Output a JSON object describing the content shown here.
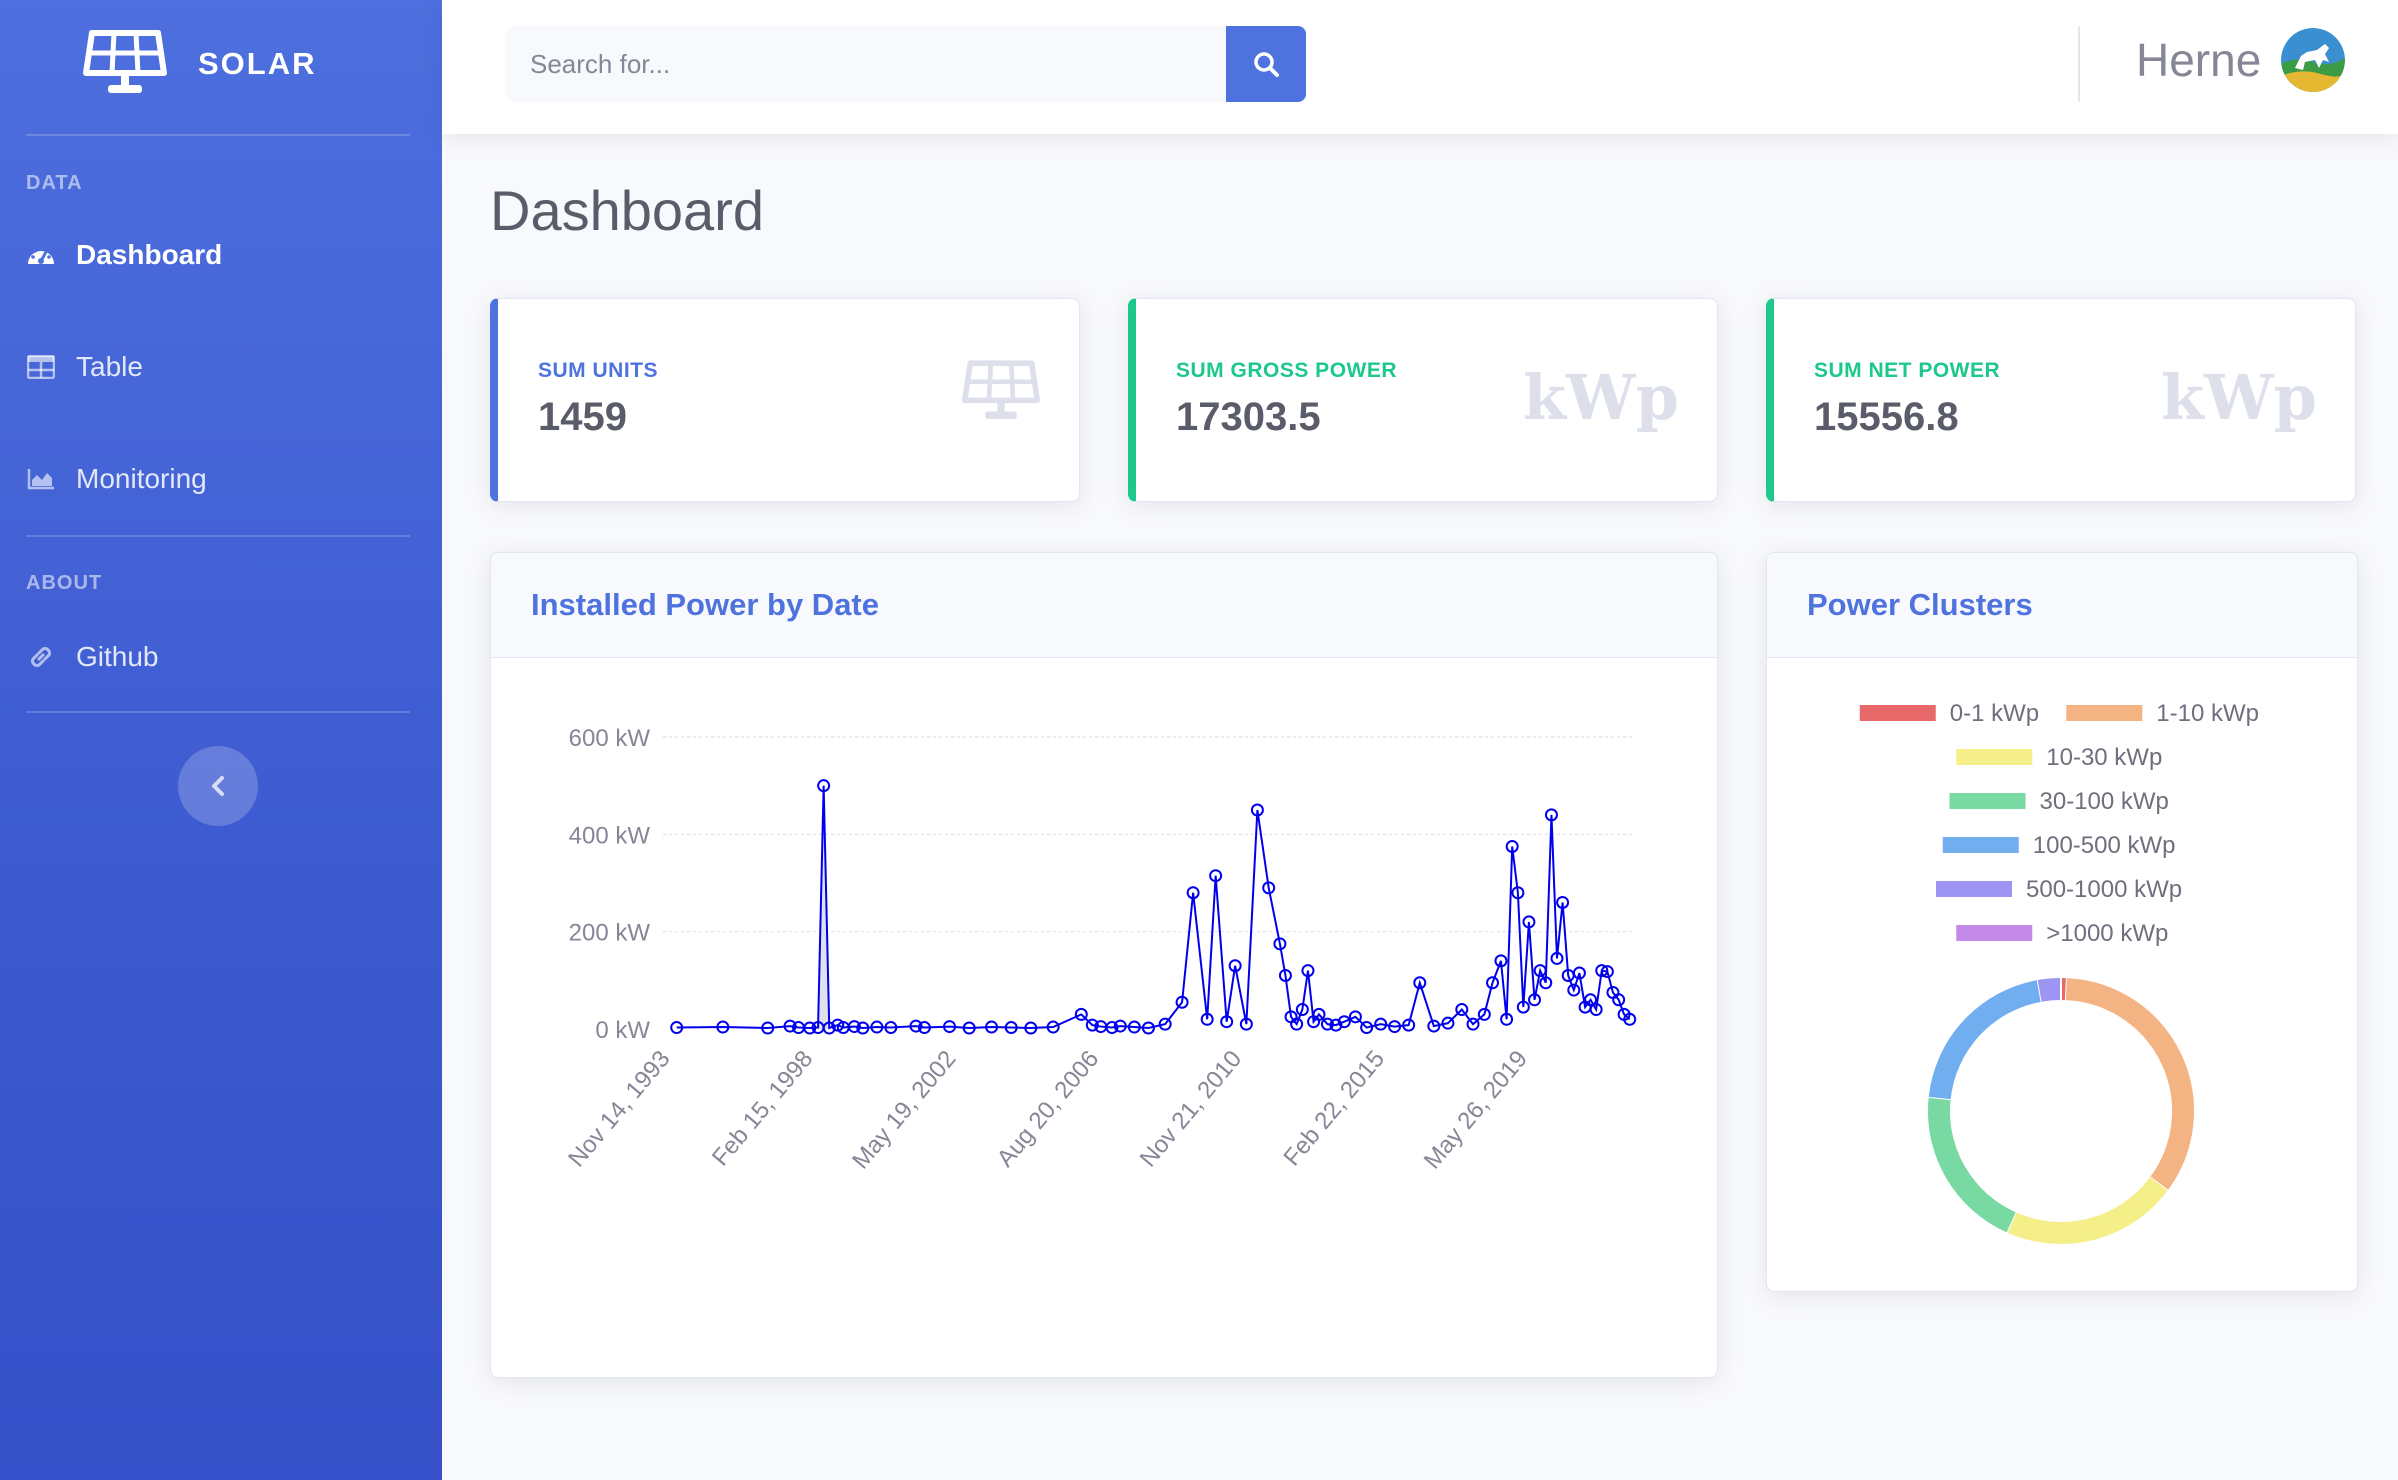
{
  "brand": {
    "name": "SOLAR",
    "icon": "solar-panel-icon"
  },
  "sidebar": {
    "sections": [
      {
        "heading": "DATA"
      },
      {
        "heading": "ABOUT"
      }
    ],
    "items": [
      {
        "label": "Dashboard",
        "icon": "tachometer-icon",
        "active": true
      },
      {
        "label": "Table",
        "icon": "table-icon",
        "active": false
      },
      {
        "label": "Monitoring",
        "icon": "area-chart-icon",
        "active": false
      },
      {
        "label": "Github",
        "icon": "link-icon",
        "active": false
      }
    ],
    "toggle_icon": "chevron-left-icon"
  },
  "search": {
    "placeholder": "Search for...",
    "value": "",
    "button_icon": "search-icon"
  },
  "user": {
    "name": "Herne",
    "avatar": "user-avatar"
  },
  "page": {
    "title": "Dashboard"
  },
  "stats": [
    {
      "label": "SUM UNITS",
      "value": "1459",
      "icon": "solar-panel-icon",
      "accent": "#4e73df"
    },
    {
      "label": "SUM GROSS POWER",
      "value": "17303.5",
      "unit": "kWp",
      "accent": "#1cc88a"
    },
    {
      "label": "SUM NET POWER",
      "value": "15556.8",
      "unit": "kWp",
      "accent": "#1cc88a"
    }
  ],
  "colors": {
    "primary": "#4e73df",
    "success": "#1cc88a",
    "series": "#0000ee",
    "fill": "#dddfe6"
  },
  "line_chart": {
    "title": "Installed Power by Date",
    "chart_data": {
      "type": "line",
      "title": "Installed Power by Date",
      "xlabel": "",
      "ylabel": "",
      "x_type": "date",
      "x_ticks": [
        "Nov 14, 1993",
        "Feb 15, 1998",
        "May 19, 2002",
        "Aug 20, 2006",
        "Nov 21, 2010",
        "Feb 22, 2015",
        "May 26, 2019"
      ],
      "y_ticks": [
        "0 kW",
        "200 kW",
        "400 kW",
        "600 kW"
      ],
      "ylim": [
        0,
        600
      ],
      "xlim": [
        "1993-11-14",
        "2022-06-15"
      ],
      "grid": true,
      "series": [
        {
          "x": [
            "1994-01-15",
            "1995-06-01",
            "1996-10-01",
            "1997-06-01",
            "1997-09-01",
            "1998-01-01",
            "1998-04-01",
            "1998-06-01",
            "1998-08-01",
            "1998-11-01",
            "1999-01-01",
            "1999-05-01",
            "1999-08-01",
            "2000-01-01",
            "2000-06-01",
            "2001-03-01",
            "2001-06-01",
            "2002-03-01",
            "2002-10-01",
            "2003-06-01",
            "2004-01-01",
            "2004-08-01",
            "2005-04-01",
            "2006-02-01",
            "2006-06-01",
            "2006-09-01",
            "2007-01-01",
            "2007-04-01",
            "2007-09-01",
            "2008-02-01",
            "2008-08-01",
            "2009-02-01",
            "2009-06-01",
            "2009-11-01",
            "2010-02-01",
            "2010-06-01",
            "2010-09-01",
            "2011-01-01",
            "2011-05-01",
            "2011-09-01",
            "2012-01-01",
            "2012-03-01",
            "2012-05-01",
            "2012-07-01",
            "2012-09-01",
            "2012-11-01",
            "2013-01-01",
            "2013-03-01",
            "2013-06-01",
            "2013-09-01",
            "2013-12-01",
            "2014-04-01",
            "2014-08-01",
            "2015-01-01",
            "2015-06-01",
            "2015-11-01",
            "2016-03-01",
            "2016-08-01",
            "2017-01-01",
            "2017-06-01",
            "2017-10-01",
            "2018-02-01",
            "2018-05-01",
            "2018-08-01",
            "2018-10-01",
            "2018-12-01",
            "2019-02-01",
            "2019-04-01",
            "2019-06-01",
            "2019-08-01",
            "2019-10-01",
            "2019-12-01",
            "2020-02-01",
            "2020-04-01",
            "2020-06-01",
            "2020-08-01",
            "2020-10-01",
            "2020-12-01",
            "2021-02-01",
            "2021-04-01",
            "2021-06-01",
            "2021-08-01",
            "2021-10-01",
            "2021-12-01",
            "2022-02-01",
            "2022-04-01",
            "2022-06-01"
          ],
          "y": [
            3,
            4,
            2,
            6,
            3,
            2,
            3,
            500,
            2,
            8,
            3,
            5,
            2,
            4,
            3,
            6,
            3,
            5,
            2,
            4,
            3,
            2,
            4,
            30,
            8,
            5,
            3,
            6,
            4,
            2,
            10,
            55,
            280,
            20,
            315,
            15,
            130,
            10,
            450,
            290,
            175,
            110,
            25,
            10,
            40,
            120,
            15,
            30,
            10,
            8,
            15,
            25,
            3,
            10,
            5,
            8,
            95,
            6,
            12,
            40,
            10,
            30,
            95,
            140,
            20,
            375,
            280,
            45,
            220,
            60,
            120,
            95,
            440,
            145,
            260,
            110,
            80,
            115,
            45,
            60,
            40,
            120,
            118,
            75,
            60,
            30,
            20
          ]
        }
      ]
    }
  },
  "donut_chart": {
    "title": "Power Clusters",
    "chart_data": {
      "type": "pie",
      "hole": true,
      "legend_position": "top",
      "categories": [
        "0-1 kWp",
        "1-10 kWp",
        "10-30 kWp",
        "30-100 kWp",
        "100-500 kWp",
        "500-1000 kWp",
        ">1000 kWp"
      ],
      "values": [
        0.7,
        34.5,
        21.5,
        20.0,
        20.5,
        2.8,
        0.0
      ],
      "colors": [
        "#e8696a",
        "#f3b383",
        "#f5ef89",
        "#79d9a2",
        "#70aef0",
        "#9e95f2",
        "#c489e8"
      ]
    }
  }
}
